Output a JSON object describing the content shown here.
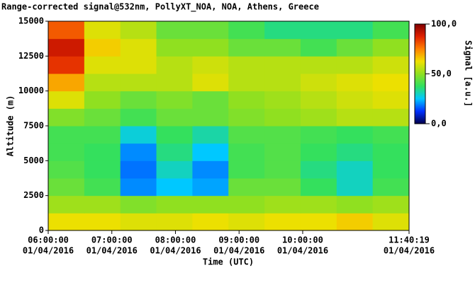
{
  "chart_data": {
    "type": "heatmap",
    "title": "Range-corrected signal@532nm, PollyXT_NOA, NOA, Athens, Greece",
    "x_label": "Time (UTC)",
    "y_label": "Altitude (m)",
    "colorbar_label": "Signal [a.u.]",
    "xlim": [
      "2016-04-01T06:00:00",
      "2016-04-01T11:40:19"
    ],
    "xticks": [
      {
        "value": "2016-04-01T06:00:00",
        "label": [
          "06:00:00",
          "01/04/2016"
        ]
      },
      {
        "value": "2016-04-01T07:00:00",
        "label": [
          "07:00:00",
          "01/04/2016"
        ]
      },
      {
        "value": "2016-04-01T08:00:00",
        "label": [
          "08:00:00",
          "01/04/2016"
        ]
      },
      {
        "value": "2016-04-01T09:00:00",
        "label": [
          "09:00:00",
          "01/04/2016"
        ]
      },
      {
        "value": "2016-04-01T10:00:00",
        "label": [
          "10:00:00",
          "01/04/2016"
        ]
      },
      {
        "value": "2016-04-01T11:40:19",
        "label": [
          "11:40:19",
          "01/04/2016"
        ]
      }
    ],
    "ylim": [
      0,
      15000
    ],
    "yticks": [
      0,
      2500,
      5000,
      7500,
      10000,
      12500,
      15000
    ],
    "clim": [
      0,
      100
    ],
    "cticks": [
      {
        "value": 0,
        "label": "0,0"
      },
      {
        "value": 50,
        "label": "50,0"
      },
      {
        "value": 100,
        "label": "100,0"
      }
    ],
    "colormap": [
      "#00004a",
      "#0030ff",
      "#00c8ff",
      "#30e060",
      "#90e020",
      "#f0e000",
      "#ff8000",
      "#e02000",
      "#800000"
    ],
    "x": [
      "2016-04-01T06:00:00",
      "2016-04-01T06:34:00",
      "2016-04-01T07:08:00",
      "2016-04-01T07:42:00",
      "2016-04-01T08:16:00",
      "2016-04-01T08:50:00",
      "2016-04-01T09:24:00",
      "2016-04-01T09:58:00",
      "2016-04-01T10:32:00",
      "2016-04-01T11:06:00",
      "2016-04-01T11:40:19"
    ],
    "y": [
      0,
      1250,
      2500,
      3750,
      5000,
      6250,
      7500,
      8750,
      10000,
      11250,
      12500,
      13750,
      15000
    ],
    "z": [
      [
        62,
        62,
        60,
        60,
        62,
        60,
        62,
        62,
        65,
        60
      ],
      [
        52,
        52,
        48,
        50,
        50,
        50,
        52,
        52,
        50,
        52
      ],
      [
        45,
        40,
        20,
        25,
        22,
        45,
        45,
        38,
        30,
        40
      ],
      [
        42,
        38,
        18,
        30,
        20,
        40,
        42,
        35,
        30,
        38
      ],
      [
        40,
        38,
        20,
        35,
        25,
        40,
        42,
        38,
        35,
        38
      ],
      [
        40,
        40,
        28,
        38,
        32,
        42,
        42,
        40,
        38,
        40
      ],
      [
        48,
        45,
        40,
        45,
        45,
        48,
        50,
        52,
        55,
        55
      ],
      [
        60,
        50,
        45,
        48,
        45,
        50,
        52,
        55,
        58,
        60
      ],
      [
        70,
        55,
        55,
        55,
        60,
        55,
        55,
        58,
        60,
        62
      ],
      [
        85,
        60,
        60,
        55,
        58,
        55,
        55,
        55,
        55,
        58
      ],
      [
        90,
        65,
        60,
        50,
        50,
        45,
        45,
        40,
        45,
        50
      ],
      [
        80,
        60,
        55,
        45,
        45,
        40,
        35,
        35,
        35,
        40
      ]
    ],
    "grid": false
  }
}
